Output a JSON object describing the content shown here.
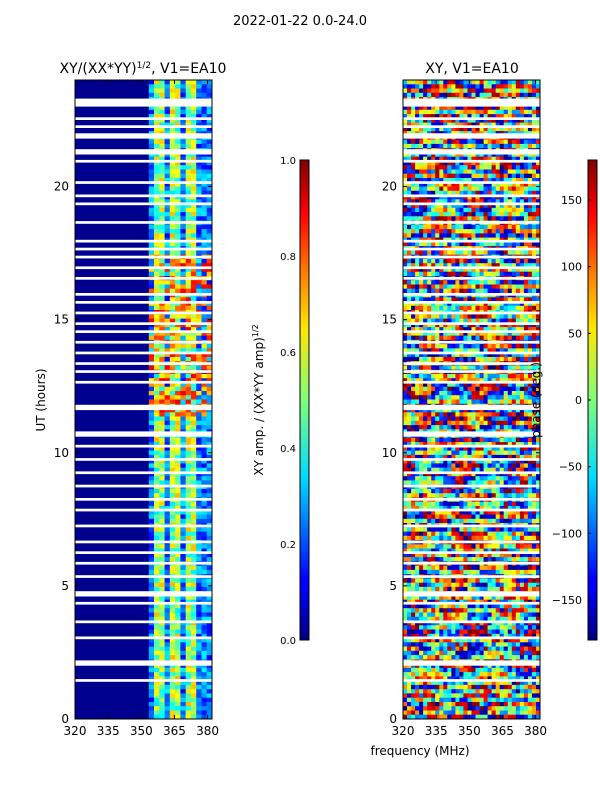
{
  "figure": {
    "suptitle": "2022-01-22 0.0-24.0"
  },
  "chart_data": [
    {
      "type": "heatmap",
      "title_base": "XY/(XX*YY)",
      "title_exp": "1/2",
      "title_suffix": ", V1=EA10",
      "ylabel": "UT (hours)",
      "xlabel": "",
      "x_range": [
        320,
        382
      ],
      "y_range": [
        0,
        24
      ],
      "x_ticks": [
        320,
        335,
        350,
        365,
        380
      ],
      "y_ticks": [
        0,
        5,
        10,
        15,
        20
      ],
      "colorbar": {
        "label_base": "XY amp. / (XX*YY amp)",
        "label_exp": "1/2",
        "range": [
          0.0,
          1.0
        ],
        "ticks": [
          "0.0",
          "0.2",
          "0.4",
          "0.6",
          "0.8",
          "1.0"
        ],
        "colormap": "jet"
      }
    },
    {
      "type": "heatmap",
      "title": "XY, V1=EA10",
      "ylabel": "",
      "xlabel": "frequency (MHz)",
      "x_range": [
        320,
        382
      ],
      "y_range": [
        0,
        24
      ],
      "x_ticks": [
        320,
        335,
        350,
        365,
        380
      ],
      "y_ticks": [
        0,
        5,
        10,
        15,
        20
      ],
      "colorbar": {
        "label": "phase (deg.)",
        "range": [
          -180,
          180
        ],
        "ticks": [
          "−150",
          "−100",
          "−50",
          "0",
          "50",
          "100",
          "150"
        ],
        "tick_values": [
          -150,
          -100,
          -50,
          0,
          50,
          100,
          150
        ],
        "colormap": "jet"
      }
    }
  ]
}
